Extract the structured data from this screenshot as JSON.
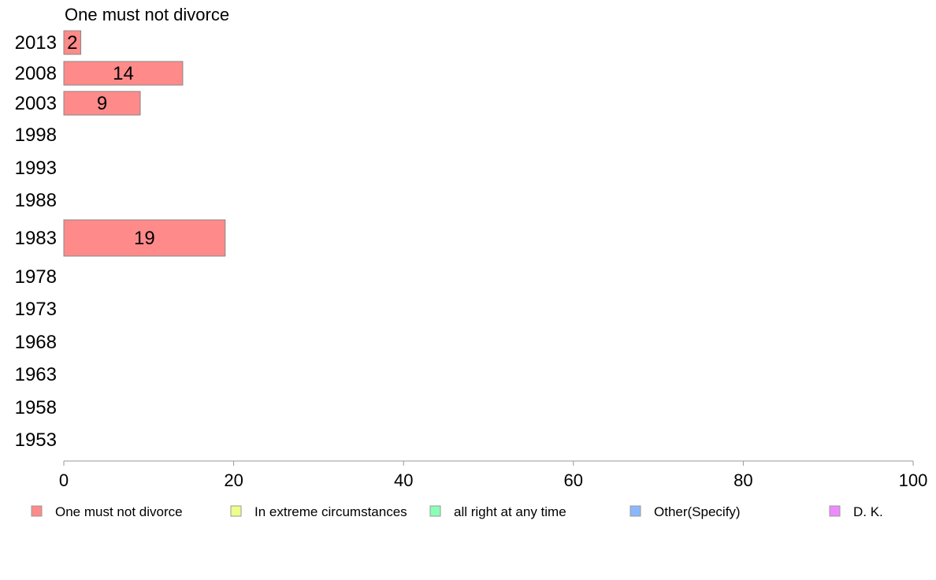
{
  "chart_data": {
    "type": "bar",
    "orientation": "horizontal",
    "title": "One must not divorce",
    "categories": [
      "2013",
      "2008",
      "2003",
      "1998",
      "1993",
      "1988",
      "1983",
      "1978",
      "1973",
      "1968",
      "1963",
      "1958",
      "1953"
    ],
    "series": [
      {
        "name": "One must not divorce",
        "values": [
          2,
          14,
          9,
          null,
          null,
          null,
          19,
          null,
          null,
          null,
          null,
          null,
          null
        ]
      }
    ],
    "data_labels": [
      "2",
      "14",
      "9",
      "",
      "",
      "",
      "19",
      "",
      "",
      "",
      "",
      "",
      ""
    ],
    "xlim": [
      0,
      100
    ],
    "x_ticks": [
      0,
      20,
      40,
      60,
      80,
      100
    ],
    "x_tick_labels": [
      "0",
      "20",
      "40",
      "60",
      "80",
      "100"
    ],
    "grid": false,
    "legend": {
      "placement": "bottom",
      "entries": [
        {
          "label": "One must not divorce",
          "color": "#ff8a8a"
        },
        {
          "label": "In extreme circumstances",
          "color": "#eeff8a"
        },
        {
          "label": "all right at any time",
          "color": "#8affb8"
        },
        {
          "label": "Other(Specify)",
          "color": "#8ab8ff"
        },
        {
          "label": "D. K.",
          "color": "#ee8aff"
        }
      ]
    },
    "bar_color": "#ff8a8a",
    "bar_border_color": "#888888",
    "axis_color": "#999999"
  }
}
